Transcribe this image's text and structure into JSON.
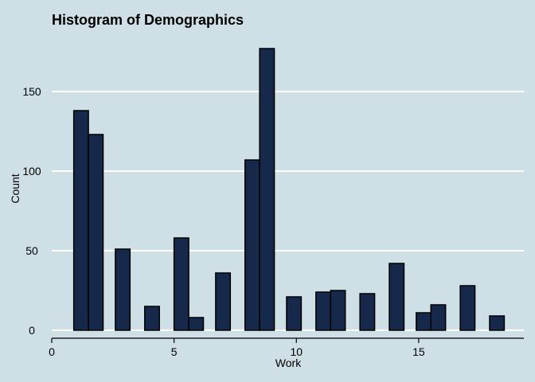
{
  "chart_data": {
    "type": "bar",
    "title": "Histogram of Demographics",
    "xlabel": "Work",
    "ylabel": "Count",
    "xlim": [
      0,
      19.3
    ],
    "ylim": [
      -5,
      185
    ],
    "xticks": [
      0,
      5,
      10,
      15
    ],
    "yticks": [
      0,
      50,
      100,
      150
    ],
    "grid": "horizontal",
    "bar_color": "#16294a",
    "background": "#cfdfe6",
    "bins": [
      {
        "start": 0.9,
        "end": 1.5,
        "count": 138
      },
      {
        "start": 1.5,
        "end": 2.1,
        "count": 123
      },
      {
        "start": 2.6,
        "end": 3.2,
        "count": 51
      },
      {
        "start": 3.8,
        "end": 4.4,
        "count": 15
      },
      {
        "start": 5.0,
        "end": 5.6,
        "count": 58
      },
      {
        "start": 5.6,
        "end": 6.2,
        "count": 8
      },
      {
        "start": 6.7,
        "end": 7.3,
        "count": 36
      },
      {
        "start": 7.9,
        "end": 8.5,
        "count": 107
      },
      {
        "start": 8.5,
        "end": 9.1,
        "count": 177
      },
      {
        "start": 9.6,
        "end": 10.2,
        "count": 21
      },
      {
        "start": 10.8,
        "end": 11.4,
        "count": 24
      },
      {
        "start": 11.4,
        "end": 12.0,
        "count": 25
      },
      {
        "start": 12.6,
        "end": 13.2,
        "count": 23
      },
      {
        "start": 13.8,
        "end": 14.4,
        "count": 42
      },
      {
        "start": 14.9,
        "end": 15.5,
        "count": 11
      },
      {
        "start": 15.5,
        "end": 16.1,
        "count": 16
      },
      {
        "start": 16.7,
        "end": 17.3,
        "count": 28
      },
      {
        "start": 17.9,
        "end": 18.5,
        "count": 9
      }
    ]
  }
}
